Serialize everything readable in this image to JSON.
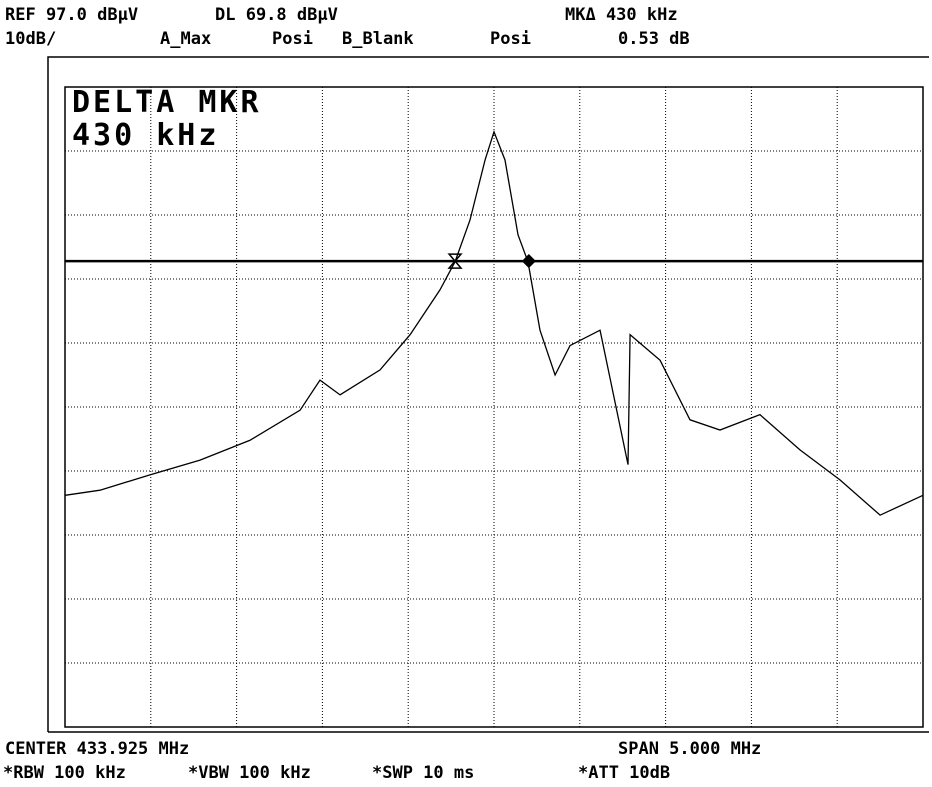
{
  "header": {
    "ref": "REF 97.0 dBµV",
    "dl": "DL 69.8 dBµV",
    "mk": "MKΔ 430 kHz",
    "scale": "10dB/",
    "trace_a": "A_Max",
    "det_a": "Posi",
    "trace_b": "B_Blank",
    "det_b": "Posi",
    "mk_value": "0.53 dB"
  },
  "footer": {
    "center": "CENTER 433.925 MHz",
    "span": "SPAN 5.000 MHz",
    "rbw": "*RBW 100 kHz",
    "vbw": "*VBW 100 kHz",
    "swp": "*SWP 10 ms",
    "att": "*ATT 10dB"
  },
  "chart_data": {
    "type": "line",
    "title": "DELTA MKR",
    "subtitle": "430 kHz",
    "x": [
      431.425,
      431.629,
      431.92,
      432.212,
      432.503,
      432.795,
      432.911,
      433.028,
      433.261,
      433.436,
      433.61,
      433.698,
      433.785,
      433.873,
      433.925,
      433.989,
      434.065,
      434.123,
      434.193,
      434.281,
      434.368,
      434.543,
      434.706,
      434.718,
      434.893,
      435.067,
      435.242,
      435.475,
      435.708,
      435.942,
      436.175,
      436.425
    ],
    "series": [
      {
        "color": "#000000",
        "values": [
          33.2,
          34,
          36.4,
          38.7,
          41.8,
          46.5,
          51.2,
          48.9,
          52.8,
          58.3,
          65.3,
          69.7,
          76.2,
          85.6,
          90,
          85.6,
          73.9,
          69.7,
          59,
          52,
          56.6,
          59,
          38,
          58.3,
          54.3,
          45,
          43.4,
          45.8,
          40.3,
          35.6,
          30.1,
          33.2
        ]
      }
    ],
    "display_line": 69.8,
    "markers": [
      {
        "x": 433.698,
        "y": 69.8
      },
      {
        "x": 434.128,
        "y": 69.8
      }
    ],
    "xlim": [
      431.425,
      436.425
    ],
    "ylim": [
      -3,
      97
    ],
    "xticks": [
      431.425,
      431.925,
      432.425,
      432.925,
      433.425,
      433.925,
      434.425,
      434.925,
      435.425,
      435.925,
      436.425
    ],
    "yticks": [
      -3,
      7,
      17,
      27,
      37,
      47,
      57,
      67,
      77,
      87,
      97
    ],
    "grid": true
  }
}
